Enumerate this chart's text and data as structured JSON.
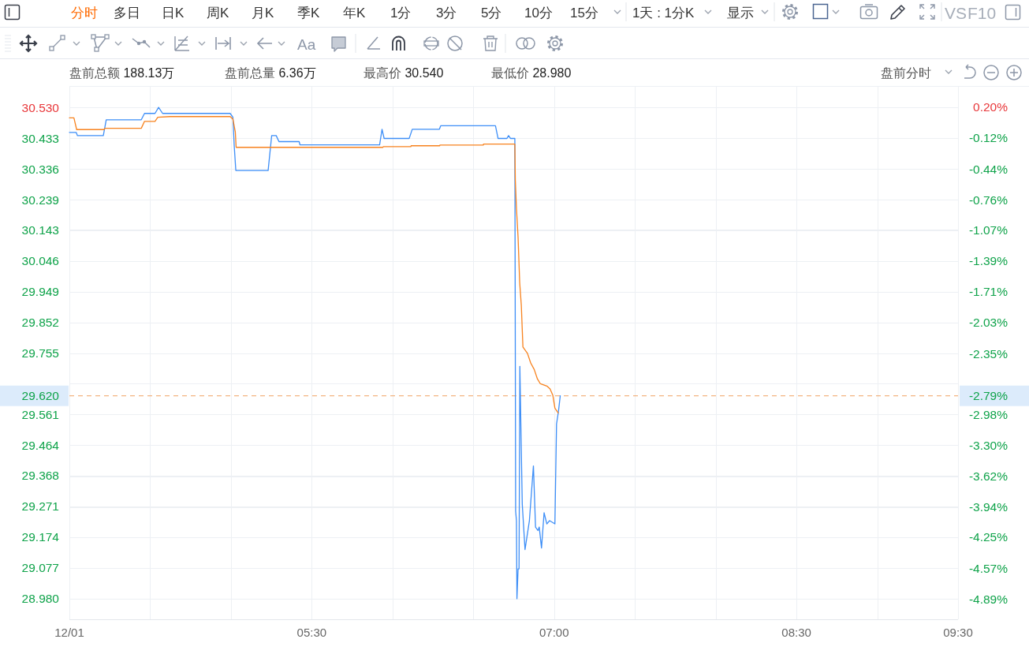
{
  "chart_data": {
    "type": "line",
    "annotations": [
      "分时",
      "多日",
      "日K",
      "周K",
      "月K",
      "季K",
      "年K",
      "1分",
      "3分",
      "5分",
      "10分",
      "15分",
      "1天 : 1分K",
      "显示",
      "VS",
      "F10",
      "Aa",
      "盘前总额 188.13万",
      "盘前总量 6.36万",
      "最高价 30.540",
      "最低价 28.980",
      "盘前分时",
      "-2.79%"
    ],
    "xlim": [
      4,
      9.5
    ],
    "xticks": [
      {
        "value": 4,
        "label": "12/01"
      },
      {
        "value": 4.5,
        "label": null
      },
      {
        "value": 5,
        "label": null
      },
      {
        "value": 5.5,
        "label": "05:30"
      },
      {
        "value": 6,
        "label": null
      },
      {
        "value": 6.5,
        "label": null
      },
      {
        "value": 7,
        "label": "07:00"
      },
      {
        "value": 7.5,
        "label": null
      },
      {
        "value": 8,
        "label": null
      },
      {
        "value": 8.5,
        "label": "08:30"
      },
      {
        "value": 9,
        "label": null
      },
      {
        "value": 9.5,
        "label": "09:30"
      }
    ],
    "ylim": [
      28.915,
      30.595
    ],
    "yticks": [
      {
        "value": 30.53,
        "label": "30.530"
      },
      {
        "value": 30.433,
        "label": "30.433"
      },
      {
        "value": 30.336,
        "label": "30.336"
      },
      {
        "value": 30.239,
        "label": "30.239"
      },
      {
        "value": 30.143,
        "label": "30.143"
      },
      {
        "value": 30.046,
        "label": "30.046"
      },
      {
        "value": 29.949,
        "label": "29.949"
      },
      {
        "value": 29.852,
        "label": "29.852"
      },
      {
        "value": 29.755,
        "label": "29.755"
      },
      {
        "value": 29.658,
        "label": null
      },
      {
        "value": 29.561,
        "label": "29.561"
      },
      {
        "value": 29.464,
        "label": "29.464"
      },
      {
        "value": 29.368,
        "label": "29.368"
      },
      {
        "value": 29.271,
        "label": "29.271"
      },
      {
        "value": 29.174,
        "label": "29.174"
      },
      {
        "value": 29.077,
        "label": "29.077"
      },
      {
        "value": 28.98,
        "label": "28.980"
      }
    ],
    "y2lim": [
      -5.1,
      0.41
    ],
    "y2ticks": [
      {
        "value": 0.2,
        "label": "0.20%"
      },
      {
        "value": -0.12,
        "label": "-0.12%"
      },
      {
        "value": -0.44,
        "label": "-0.44%"
      },
      {
        "value": -0.76,
        "label": "-0.76%"
      },
      {
        "value": -1.07,
        "label": "-1.07%"
      },
      {
        "value": -1.39,
        "label": "-1.39%"
      },
      {
        "value": -1.71,
        "label": "-1.71%"
      },
      {
        "value": -2.03,
        "label": "-2.03%"
      },
      {
        "value": -2.35,
        "label": "-2.35%"
      },
      {
        "value": -2.66,
        "label": null
      },
      {
        "value": -2.98,
        "label": "-2.98%"
      },
      {
        "value": -3.3,
        "label": "-3.30%"
      },
      {
        "value": -3.62,
        "label": "-3.62%"
      },
      {
        "value": -3.94,
        "label": "-3.94%"
      },
      {
        "value": -4.25,
        "label": "-4.25%"
      },
      {
        "value": -4.57,
        "label": "-4.57%"
      },
      {
        "value": -4.89,
        "label": "-4.89%"
      }
    ],
    "grid": true,
    "ref_lines": [
      {
        "axis": "y",
        "value": 29.62,
        "label": "29.620",
        "color": "#f0a060",
        "line_style": "dashed"
      }
    ],
    "series": [
      {
        "color": "#3d8ef7",
        "x": [
          4.0,
          4.042,
          4.05,
          4.21,
          4.228,
          4.445,
          4.465,
          4.53,
          4.552,
          4.577,
          4.995,
          5.012,
          5.02,
          5.03,
          5.23,
          5.252,
          5.28,
          5.297,
          5.422,
          5.427,
          5.92,
          5.935,
          5.948,
          6.103,
          6.122,
          6.29,
          6.298,
          6.637,
          6.653,
          6.708,
          6.718,
          6.73,
          6.757,
          6.762,
          6.767,
          6.77,
          6.777,
          6.783,
          6.788,
          6.797,
          6.803,
          6.82,
          6.847,
          6.872,
          6.885,
          6.9,
          6.908,
          6.922,
          6.938,
          6.955,
          6.972,
          7.005,
          7.015,
          7.027,
          7.038
        ],
        "values": [
          30.451,
          30.451,
          30.441,
          30.441,
          30.491,
          30.491,
          30.511,
          30.511,
          30.53,
          30.511,
          30.511,
          30.499,
          30.41,
          30.331,
          30.331,
          30.441,
          30.441,
          30.422,
          30.422,
          30.412,
          30.412,
          30.461,
          30.432,
          30.432,
          30.461,
          30.461,
          30.472,
          30.472,
          30.432,
          30.432,
          30.441,
          30.432,
          30.432,
          29.256,
          29.226,
          28.98,
          29.074,
          29.074,
          29.713,
          29.449,
          29.277,
          29.135,
          29.226,
          29.399,
          29.206,
          29.195,
          29.206,
          29.14,
          29.251,
          29.216,
          29.226,
          29.216,
          29.531,
          29.571,
          29.62
        ]
      },
      {
        "color": "#f7821e",
        "x": [
          4.0,
          4.028,
          4.045,
          4.213,
          4.22,
          4.445,
          4.465,
          4.53,
          4.547,
          4.623,
          4.995,
          5.012,
          5.027,
          5.032,
          5.94,
          5.943,
          6.113,
          6.115,
          6.292,
          6.293,
          6.562,
          6.563,
          6.757,
          6.76,
          6.767,
          6.777,
          6.787,
          6.797,
          6.807,
          6.835,
          6.855,
          6.877,
          6.897,
          6.915,
          6.955,
          6.975,
          6.992,
          7.005,
          7.025
        ],
        "values": [
          30.497,
          30.497,
          30.46,
          30.46,
          30.464,
          30.464,
          30.486,
          30.486,
          30.499,
          30.501,
          30.501,
          30.493,
          30.452,
          30.404,
          30.404,
          30.406,
          30.406,
          30.409,
          30.409,
          30.411,
          30.411,
          30.414,
          30.414,
          30.3,
          30.211,
          30.12,
          29.977,
          29.906,
          29.774,
          29.754,
          29.724,
          29.703,
          29.673,
          29.658,
          29.651,
          29.642,
          29.622,
          29.581,
          29.566
        ]
      }
    ]
  }
}
